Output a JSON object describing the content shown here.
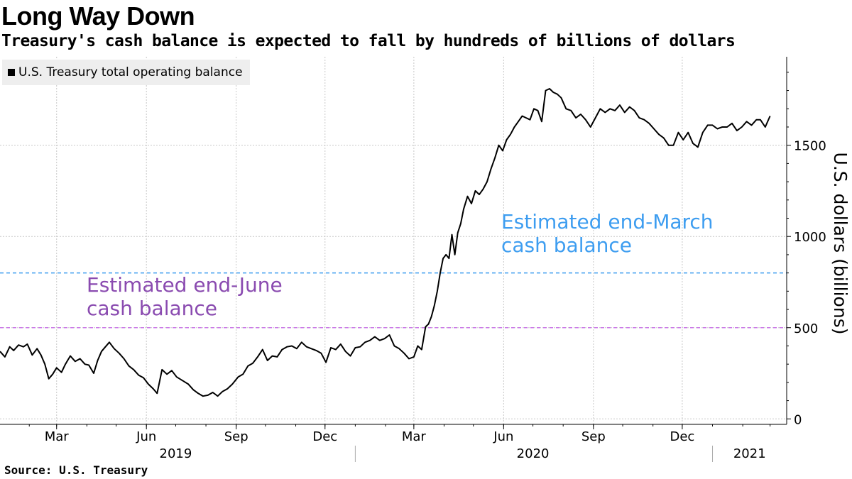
{
  "title": "Long Way Down",
  "subtitle": "Treasury's cash balance is expected to fall by hundreds of billions of dollars",
  "source": "Source: U.S. Treasury",
  "chart_data": {
    "type": "line",
    "ylabel": "U.S. dollars (billions)",
    "ylim": [
      -30,
      1985
    ],
    "xlim": [
      "2019-01-02",
      "2021-03-18"
    ],
    "y_axis_side": "right",
    "grid": true,
    "y_ticks": [
      0,
      500,
      1000,
      1500
    ],
    "x_month_ticks": [
      {
        "label": "Mar",
        "date": "2019-03-01"
      },
      {
        "label": "Jun",
        "date": "2019-06-01"
      },
      {
        "label": "Sep",
        "date": "2019-09-01"
      },
      {
        "label": "Dec",
        "date": "2019-12-01"
      },
      {
        "label": "Mar",
        "date": "2020-03-01"
      },
      {
        "label": "Jun",
        "date": "2020-06-01"
      },
      {
        "label": "Sep",
        "date": "2020-09-01"
      },
      {
        "label": "Dec",
        "date": "2020-12-01"
      }
    ],
    "x_year_labels": [
      {
        "label": "2019",
        "center": "2019-07-01"
      },
      {
        "label": "2020",
        "center": "2020-07-01"
      },
      {
        "label": "2021",
        "center": "2021-02-08"
      }
    ],
    "year_separators": [
      "2020-01-01",
      "2021-01-01"
    ],
    "legend": {
      "position": "top-left",
      "entries": [
        "U.S. Treasury total operating balance"
      ]
    },
    "series": [
      {
        "name": "U.S. Treasury total operating balance",
        "color": "#000000",
        "points": [
          [
            "2019-01-02",
            370
          ],
          [
            "2019-01-07",
            340
          ],
          [
            "2019-01-12",
            395
          ],
          [
            "2019-01-16",
            375
          ],
          [
            "2019-01-21",
            405
          ],
          [
            "2019-01-26",
            395
          ],
          [
            "2019-01-30",
            410
          ],
          [
            "2019-02-04",
            350
          ],
          [
            "2019-02-09",
            385
          ],
          [
            "2019-02-13",
            350
          ],
          [
            "2019-02-17",
            300
          ],
          [
            "2019-02-21",
            220
          ],
          [
            "2019-02-25",
            245
          ],
          [
            "2019-03-01",
            280
          ],
          [
            "2019-03-06",
            255
          ],
          [
            "2019-03-10",
            300
          ],
          [
            "2019-03-15",
            345
          ],
          [
            "2019-03-20",
            315
          ],
          [
            "2019-03-25",
            330
          ],
          [
            "2019-03-30",
            300
          ],
          [
            "2019-04-03",
            295
          ],
          [
            "2019-04-08",
            250
          ],
          [
            "2019-04-12",
            320
          ],
          [
            "2019-04-16",
            370
          ],
          [
            "2019-04-20",
            395
          ],
          [
            "2019-04-24",
            420
          ],
          [
            "2019-04-29",
            385
          ],
          [
            "2019-05-04",
            360
          ],
          [
            "2019-05-09",
            330
          ],
          [
            "2019-05-14",
            290
          ],
          [
            "2019-05-19",
            270
          ],
          [
            "2019-05-24",
            240
          ],
          [
            "2019-05-29",
            225
          ],
          [
            "2019-06-03",
            190
          ],
          [
            "2019-06-08",
            165
          ],
          [
            "2019-06-12",
            140
          ],
          [
            "2019-06-17",
            270
          ],
          [
            "2019-06-22",
            245
          ],
          [
            "2019-06-27",
            265
          ],
          [
            "2019-07-02",
            230
          ],
          [
            "2019-07-08",
            210
          ],
          [
            "2019-07-14",
            190
          ],
          [
            "2019-07-19",
            160
          ],
          [
            "2019-07-24",
            140
          ],
          [
            "2019-07-29",
            125
          ],
          [
            "2019-08-03",
            130
          ],
          [
            "2019-08-08",
            145
          ],
          [
            "2019-08-13",
            125
          ],
          [
            "2019-08-18",
            150
          ],
          [
            "2019-08-23",
            165
          ],
          [
            "2019-08-28",
            190
          ],
          [
            "2019-09-03",
            230
          ],
          [
            "2019-09-08",
            245
          ],
          [
            "2019-09-13",
            290
          ],
          [
            "2019-09-18",
            305
          ],
          [
            "2019-09-23",
            340
          ],
          [
            "2019-09-28",
            380
          ],
          [
            "2019-10-03",
            320
          ],
          [
            "2019-10-08",
            345
          ],
          [
            "2019-10-13",
            340
          ],
          [
            "2019-10-18",
            380
          ],
          [
            "2019-10-23",
            395
          ],
          [
            "2019-10-28",
            400
          ],
          [
            "2019-11-02",
            385
          ],
          [
            "2019-11-07",
            420
          ],
          [
            "2019-11-12",
            395
          ],
          [
            "2019-11-17",
            385
          ],
          [
            "2019-11-22",
            375
          ],
          [
            "2019-11-27",
            360
          ],
          [
            "2019-12-02",
            310
          ],
          [
            "2019-12-07",
            390
          ],
          [
            "2019-12-12",
            380
          ],
          [
            "2019-12-17",
            410
          ],
          [
            "2019-12-22",
            370
          ],
          [
            "2019-12-27",
            345
          ],
          [
            "2020-01-01",
            390
          ],
          [
            "2020-01-06",
            395
          ],
          [
            "2020-01-11",
            420
          ],
          [
            "2020-01-16",
            430
          ],
          [
            "2020-01-21",
            450
          ],
          [
            "2020-01-26",
            430
          ],
          [
            "2020-01-31",
            440
          ],
          [
            "2020-02-05",
            460
          ],
          [
            "2020-02-10",
            400
          ],
          [
            "2020-02-15",
            385
          ],
          [
            "2020-02-20",
            360
          ],
          [
            "2020-02-25",
            330
          ],
          [
            "2020-03-01",
            340
          ],
          [
            "2020-03-05",
            400
          ],
          [
            "2020-03-09",
            380
          ],
          [
            "2020-03-13",
            505
          ],
          [
            "2020-03-16",
            520
          ],
          [
            "2020-03-19",
            560
          ],
          [
            "2020-03-22",
            620
          ],
          [
            "2020-03-25",
            700
          ],
          [
            "2020-03-28",
            800
          ],
          [
            "2020-03-31",
            880
          ],
          [
            "2020-04-03",
            900
          ],
          [
            "2020-04-06",
            880
          ],
          [
            "2020-04-09",
            1010
          ],
          [
            "2020-04-12",
            900
          ],
          [
            "2020-04-15",
            1020
          ],
          [
            "2020-04-18",
            1070
          ],
          [
            "2020-04-21",
            1150
          ],
          [
            "2020-04-25",
            1220
          ],
          [
            "2020-04-29",
            1180
          ],
          [
            "2020-05-03",
            1250
          ],
          [
            "2020-05-07",
            1230
          ],
          [
            "2020-05-11",
            1260
          ],
          [
            "2020-05-15",
            1300
          ],
          [
            "2020-05-19",
            1370
          ],
          [
            "2020-05-23",
            1430
          ],
          [
            "2020-05-27",
            1500
          ],
          [
            "2020-05-31",
            1470
          ],
          [
            "2020-06-04",
            1530
          ],
          [
            "2020-06-08",
            1560
          ],
          [
            "2020-06-12",
            1600
          ],
          [
            "2020-06-16",
            1630
          ],
          [
            "2020-06-20",
            1660
          ],
          [
            "2020-06-24",
            1650
          ],
          [
            "2020-06-28",
            1640
          ],
          [
            "2020-07-02",
            1700
          ],
          [
            "2020-07-06",
            1690
          ],
          [
            "2020-07-10",
            1630
          ],
          [
            "2020-07-14",
            1800
          ],
          [
            "2020-07-18",
            1810
          ],
          [
            "2020-07-22",
            1790
          ],
          [
            "2020-07-26",
            1780
          ],
          [
            "2020-07-30",
            1760
          ],
          [
            "2020-08-04",
            1700
          ],
          [
            "2020-08-09",
            1690
          ],
          [
            "2020-08-14",
            1650
          ],
          [
            "2020-08-19",
            1670
          ],
          [
            "2020-08-24",
            1640
          ],
          [
            "2020-08-29",
            1600
          ],
          [
            "2020-09-03",
            1650
          ],
          [
            "2020-09-08",
            1700
          ],
          [
            "2020-09-13",
            1680
          ],
          [
            "2020-09-18",
            1700
          ],
          [
            "2020-09-23",
            1690
          ],
          [
            "2020-09-28",
            1720
          ],
          [
            "2020-10-03",
            1680
          ],
          [
            "2020-10-08",
            1710
          ],
          [
            "2020-10-13",
            1690
          ],
          [
            "2020-10-18",
            1650
          ],
          [
            "2020-10-23",
            1640
          ],
          [
            "2020-10-28",
            1620
          ],
          [
            "2020-11-02",
            1590
          ],
          [
            "2020-11-07",
            1560
          ],
          [
            "2020-11-12",
            1540
          ],
          [
            "2020-11-17",
            1500
          ],
          [
            "2020-11-22",
            1500
          ],
          [
            "2020-11-27",
            1570
          ],
          [
            "2020-12-02",
            1530
          ],
          [
            "2020-12-07",
            1570
          ],
          [
            "2020-12-12",
            1510
          ],
          [
            "2020-12-17",
            1490
          ],
          [
            "2020-12-22",
            1570
          ],
          [
            "2020-12-27",
            1610
          ],
          [
            "2021-01-01",
            1610
          ],
          [
            "2021-01-06",
            1590
          ],
          [
            "2021-01-11",
            1600
          ],
          [
            "2021-01-16",
            1600
          ],
          [
            "2021-01-21",
            1620
          ],
          [
            "2021-01-26",
            1580
          ],
          [
            "2021-01-31",
            1600
          ],
          [
            "2021-02-05",
            1630
          ],
          [
            "2021-02-10",
            1610
          ],
          [
            "2021-02-15",
            1640
          ],
          [
            "2021-02-19",
            1640
          ],
          [
            "2021-02-24",
            1600
          ],
          [
            "2021-03-01",
            1660
          ]
        ]
      }
    ],
    "reference_lines": [
      {
        "label": "Estimated end-March cash balance",
        "value": 800,
        "color": "#3d9df0",
        "annotation_lines": [
          "Estimated end-March",
          "cash balance"
        ]
      },
      {
        "label": "Estimated end-June cash balance",
        "value": 500,
        "color": "#cc7ae8",
        "annotation_lines": [
          "Estimated end-June",
          "cash balance"
        ],
        "text_color": "#8a4bb0"
      }
    ]
  }
}
